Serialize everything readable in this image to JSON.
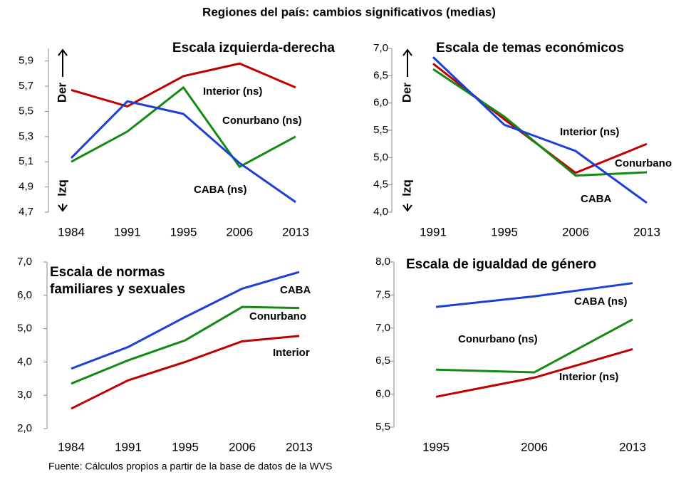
{
  "title": "Regiones del país: cambios significativos (medias)",
  "source": "Fuente: Cálculos propios a partir de la base de datos de la WVS",
  "chart_data": [
    {
      "type": "line",
      "title": [
        "Escala izquierda-derecha"
      ],
      "y_annotations": [
        "Der",
        "Izq"
      ],
      "categories": [
        "1984",
        "1991",
        "1995",
        "2006",
        "2013"
      ],
      "ylim": [
        4.7,
        6.0
      ],
      "yticks": [
        {
          "value": 4.7,
          "label": "4,7"
        },
        {
          "value": 4.9,
          "label": "4,9"
        },
        {
          "value": 5.1,
          "label": "5,1"
        },
        {
          "value": 5.3,
          "label": "5,3"
        },
        {
          "value": 5.5,
          "label": "5,5"
        },
        {
          "value": 5.7,
          "label": "5,7"
        },
        {
          "value": 5.9,
          "label": "5,9"
        }
      ],
      "series": [
        {
          "name": "Interior (ns)",
          "color": "#c00000",
          "values": [
            5.67,
            5.54,
            5.78,
            5.88,
            5.69
          ]
        },
        {
          "name": "Conurbano (ns)",
          "color": "#138a13",
          "values": [
            5.1,
            5.34,
            5.69,
            5.06,
            5.3
          ]
        },
        {
          "name": "CABA (ns)",
          "color": "#1c3fd6",
          "values": [
            5.13,
            5.58,
            5.48,
            5.09,
            4.78
          ]
        }
      ]
    },
    {
      "type": "line",
      "title": [
        "Escala de temas económicos"
      ],
      "y_annotations": [
        "Der",
        "Izq"
      ],
      "categories": [
        "1991",
        "1995",
        "2006",
        "2013"
      ],
      "ylim": [
        4.0,
        7.0
      ],
      "yticks": [
        {
          "value": 4.0,
          "label": "4,0"
        },
        {
          "value": 4.5,
          "label": "4,5"
        },
        {
          "value": 5.0,
          "label": "5,0"
        },
        {
          "value": 5.5,
          "label": "5,5"
        },
        {
          "value": 6.0,
          "label": "6,0"
        },
        {
          "value": 6.5,
          "label": "6,5"
        },
        {
          "value": 7.0,
          "label": "7,0"
        }
      ],
      "series": [
        {
          "name": "Interior (ns)",
          "color": "#c00000",
          "values": [
            6.72,
            5.7,
            4.72,
            5.25
          ]
        },
        {
          "name": "Conurbano",
          "color": "#138a13",
          "values": [
            6.62,
            5.75,
            4.67,
            4.73
          ]
        },
        {
          "name": "CABA",
          "color": "#1c3fd6",
          "values": [
            6.84,
            5.6,
            5.12,
            4.17
          ]
        }
      ]
    },
    {
      "type": "line",
      "title": [
        "Escala de normas",
        "familiares y sexuales"
      ],
      "categories": [
        "1984",
        "1991",
        "1995",
        "2006",
        "2013"
      ],
      "ylim": [
        2.0,
        7.0
      ],
      "yticks": [
        {
          "value": 2.0,
          "label": "2,0"
        },
        {
          "value": 3.0,
          "label": "3,0"
        },
        {
          "value": 4.0,
          "label": "4,0"
        },
        {
          "value": 5.0,
          "label": "5,0"
        },
        {
          "value": 6.0,
          "label": "6,0"
        },
        {
          "value": 7.0,
          "label": "7,0"
        }
      ],
      "series": [
        {
          "name": "CABA",
          "color": "#1c3fd6",
          "values": [
            3.8,
            4.45,
            5.35,
            6.2,
            6.7
          ]
        },
        {
          "name": "Conurbano",
          "color": "#138a13",
          "values": [
            3.35,
            4.05,
            4.65,
            5.65,
            5.62
          ]
        },
        {
          "name": "Interior",
          "color": "#c00000",
          "values": [
            2.6,
            3.45,
            4.0,
            4.62,
            4.78
          ]
        }
      ]
    },
    {
      "type": "line",
      "title": [
        "Escala de igualdad de género"
      ],
      "categories": [
        "1995",
        "2006",
        "2013"
      ],
      "ylim": [
        5.5,
        8.0
      ],
      "yticks": [
        {
          "value": 5.5,
          "label": "5,5"
        },
        {
          "value": 6.0,
          "label": "6,0"
        },
        {
          "value": 6.5,
          "label": "6,5"
        },
        {
          "value": 7.0,
          "label": "7,0"
        },
        {
          "value": 7.5,
          "label": "7,5"
        },
        {
          "value": 8.0,
          "label": "8,0"
        }
      ],
      "series": [
        {
          "name": "CABA (ns)",
          "color": "#1c3fd6",
          "values": [
            7.32,
            7.48,
            7.68
          ]
        },
        {
          "name": "Conurbano (ns)",
          "color": "#138a13",
          "values": [
            6.37,
            6.33,
            7.13
          ]
        },
        {
          "name": "Interior (ns)",
          "color": "#c00000",
          "values": [
            5.96,
            6.25,
            6.68
          ]
        }
      ]
    }
  ]
}
